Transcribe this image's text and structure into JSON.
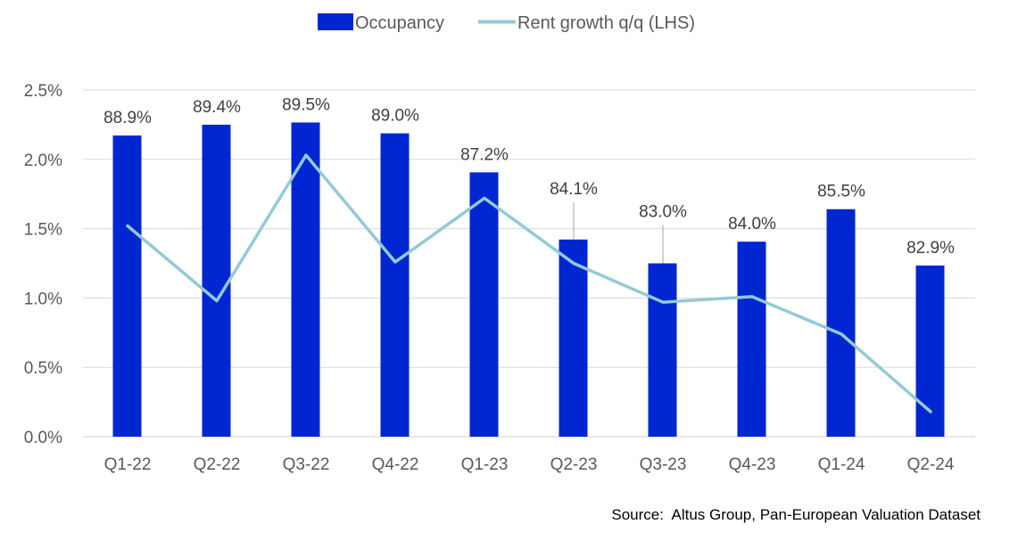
{
  "chart_data": {
    "type": "bar",
    "categories": [
      "Q1-22",
      "Q2-22",
      "Q3-22",
      "Q4-22",
      "Q1-23",
      "Q2-23",
      "Q3-23",
      "Q4-23",
      "Q1-24",
      "Q2-24"
    ],
    "series": [
      {
        "name": "Occupancy",
        "type": "bar",
        "color": "#0026d2",
        "values": [
          88.9,
          89.4,
          89.5,
          89.0,
          87.2,
          84.1,
          83.0,
          84.0,
          85.5,
          82.9
        ],
        "labels": [
          "88.9%",
          "89.4%",
          "89.5%",
          "89.0%",
          "87.2%",
          "84.1%",
          "83.0%",
          "84.0%",
          "85.5%",
          "82.9%"
        ]
      },
      {
        "name": "Rent growth q/q (LHS)",
        "type": "line",
        "color": "#92cbd6",
        "values": [
          1.52,
          0.98,
          2.03,
          1.26,
          1.72,
          1.25,
          0.97,
          1.01,
          0.74,
          0.18
        ]
      }
    ],
    "yaxis_left": {
      "ticks": [
        0,
        0.5,
        1.0,
        1.5,
        2.0,
        2.5
      ],
      "tick_labels": [
        "0.0%",
        "0.5%",
        "1.0%",
        "1.5%",
        "2.0%",
        "2.5%"
      ],
      "range": [
        0,
        2.5
      ]
    },
    "bar_axis_range": [
      75.0,
      91.0
    ],
    "grid": true,
    "legend_position": "top-center"
  },
  "source": "Source:  Altus Group, Pan-European Valuation Dataset"
}
